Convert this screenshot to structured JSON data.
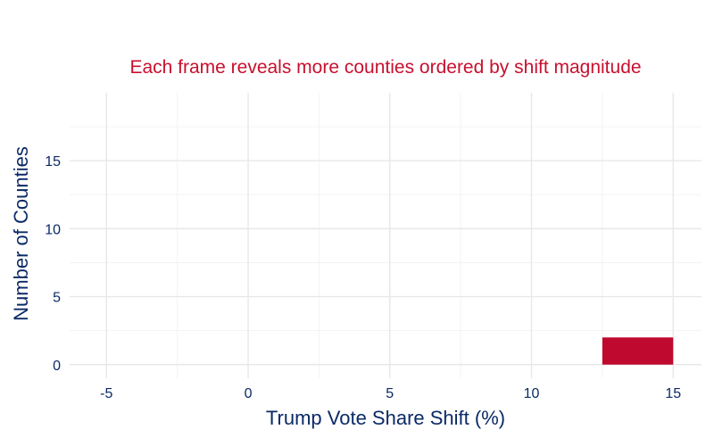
{
  "chart_data": {
    "type": "bar",
    "subtitle": "Each frame reveals more counties ordered by shift magnitude",
    "xlabel": "Trump Vote Share Shift (%)",
    "ylabel": "Number of Counties",
    "xlim": [
      -6.3,
      16
    ],
    "ylim": [
      -1,
      20
    ],
    "x_ticks": [
      -5,
      0,
      5,
      10,
      15
    ],
    "x_tick_labels": [
      "-5",
      "0",
      "5",
      "10",
      "15"
    ],
    "y_ticks": [
      0,
      5,
      10,
      15
    ],
    "y_tick_labels": [
      "0",
      "5",
      "10",
      "15"
    ],
    "grid": true,
    "bars": [
      {
        "x_start": 12.5,
        "x_end": 15,
        "count": 2
      }
    ],
    "colors": {
      "bar": "#c0092e",
      "subtitle": "#c8102e",
      "text": "#0b2a66",
      "grid_major": "#e8e8e8",
      "grid_minor": "#f3f3f3"
    }
  }
}
